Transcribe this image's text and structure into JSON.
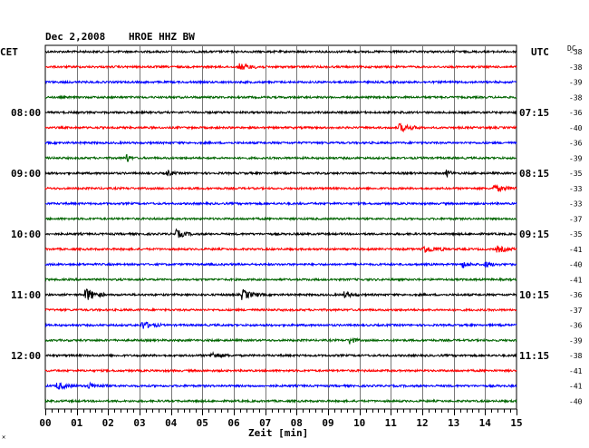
{
  "header": {
    "date": "Dec 2,2008",
    "station": "HROE HHZ BW",
    "left_tz": "CET",
    "right_tz": "UTC",
    "dc_label": "DC"
  },
  "chart_data": {
    "type": "line",
    "title": "Dec 2,2008  HROE HHZ BW",
    "xlabel": "Zeit [min]",
    "xlim": [
      0,
      15
    ],
    "x_ticks": [
      "00",
      "01",
      "02",
      "03",
      "04",
      "05",
      "06",
      "07",
      "08",
      "09",
      "10",
      "11",
      "12",
      "13",
      "14",
      "15"
    ],
    "trace_colors": [
      "#000000",
      "#ff0000",
      "#0000ff",
      "#006400"
    ],
    "left_time_labels": [
      "08:00",
      "09:00",
      "10:00",
      "11:00",
      "12:00"
    ],
    "right_time_labels": [
      "07:15",
      "08:15",
      "09:15",
      "10:15",
      "11:15"
    ],
    "dc_offsets": [
      -38,
      -38,
      -39,
      -38,
      -36,
      -40,
      -36,
      -39,
      -35,
      -33,
      -33,
      -37,
      -35,
      -41,
      -40,
      -41,
      -36,
      -37,
      -36,
      -39,
      -38,
      -41,
      -41,
      -40
    ],
    "grid": true
  }
}
